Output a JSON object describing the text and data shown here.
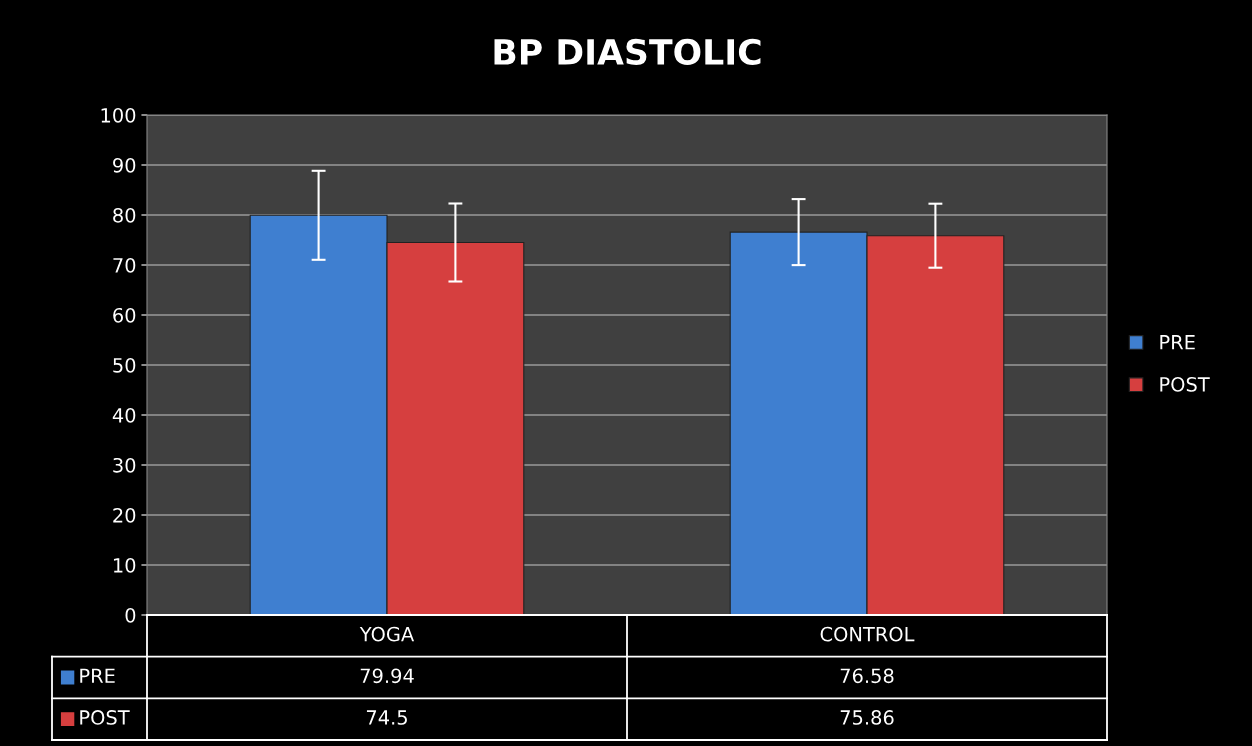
{
  "chart_data": {
    "type": "bar",
    "title": "BP DIASTOLIC",
    "categories": [
      "YOGA",
      "CONTROL"
    ],
    "series": [
      {
        "name": "PRE",
        "color": "#3f7fd0",
        "values": [
          79.94,
          76.58
        ],
        "errors": [
          8.9,
          6.6
        ]
      },
      {
        "name": "POST",
        "color": "#d63f3f",
        "values": [
          74.5,
          75.86
        ],
        "errors": [
          7.8,
          6.4
        ]
      }
    ],
    "ylim": [
      0,
      100
    ],
    "yticks": [
      0,
      10,
      20,
      30,
      40,
      50,
      60,
      70,
      80,
      90,
      100
    ],
    "grid": "y",
    "legend": "right",
    "data_labels": true
  }
}
